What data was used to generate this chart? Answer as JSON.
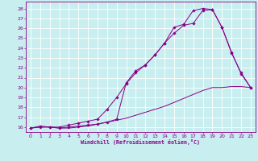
{
  "bg_color": "#c8eef0",
  "grid_color": "#aadddd",
  "line_color": "#880088",
  "spine_color": "#880088",
  "xlabel": "Windchill (Refroidissement éolien,°C)",
  "xlim": [
    -0.5,
    23.5
  ],
  "ylim": [
    15.5,
    28.7
  ],
  "xticks": [
    0,
    1,
    2,
    3,
    4,
    5,
    6,
    7,
    8,
    9,
    10,
    11,
    12,
    13,
    14,
    15,
    16,
    17,
    18,
    19,
    20,
    21,
    22,
    23
  ],
  "yticks": [
    16,
    17,
    18,
    19,
    20,
    21,
    22,
    23,
    24,
    25,
    26,
    27,
    28
  ],
  "line1_x": [
    0,
    1,
    2,
    3,
    4,
    5,
    6,
    7,
    8,
    9,
    10,
    11,
    12,
    13,
    14,
    15,
    16,
    17,
    18,
    19,
    20,
    21,
    22,
    23
  ],
  "line1_y": [
    15.9,
    16.0,
    16.0,
    15.9,
    16.0,
    16.1,
    16.2,
    16.3,
    16.5,
    16.8,
    20.5,
    21.7,
    22.3,
    23.3,
    24.5,
    26.1,
    26.4,
    27.8,
    28.0,
    27.9,
    26.1,
    23.6,
    21.4,
    20.0
  ],
  "line2_x": [
    0,
    1,
    2,
    3,
    4,
    5,
    6,
    7,
    8,
    9,
    10,
    11,
    12,
    13,
    14,
    15,
    16,
    17,
    18,
    19,
    20,
    21,
    22,
    23
  ],
  "line2_y": [
    15.9,
    16.0,
    16.0,
    15.9,
    15.9,
    16.0,
    16.1,
    16.3,
    16.5,
    16.7,
    16.9,
    17.2,
    17.5,
    17.8,
    18.1,
    18.5,
    18.9,
    19.3,
    19.7,
    20.0,
    20.0,
    20.1,
    20.1,
    20.0
  ],
  "line3_x": [
    0,
    1,
    2,
    3,
    4,
    5,
    6,
    7,
    8,
    9,
    10,
    11,
    12,
    13,
    14,
    15,
    16,
    17,
    18,
    19,
    20,
    21,
    22,
    23
  ],
  "line3_y": [
    15.9,
    16.1,
    16.0,
    16.0,
    16.2,
    16.4,
    16.6,
    16.8,
    17.8,
    19.0,
    20.4,
    21.5,
    22.3,
    23.3,
    24.5,
    25.5,
    26.3,
    26.5,
    27.8,
    27.9,
    26.1,
    23.5,
    21.5,
    20.0
  ]
}
